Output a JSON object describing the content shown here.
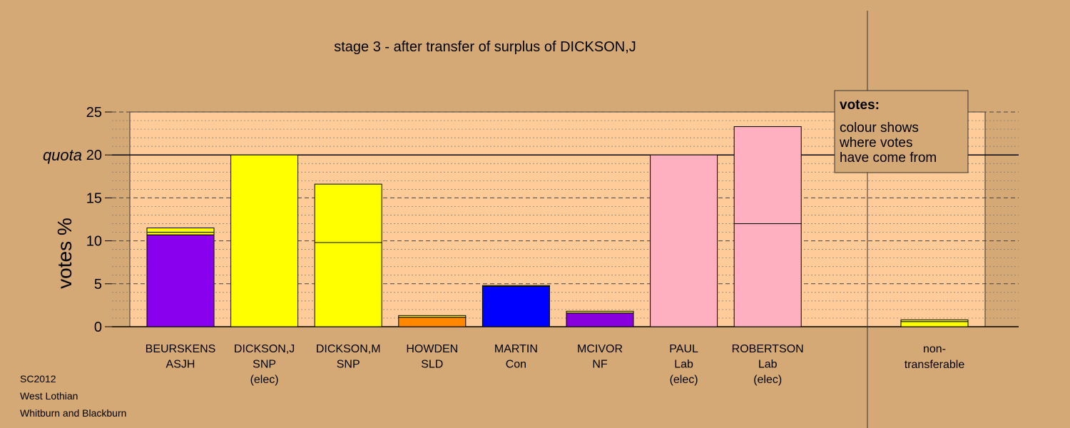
{
  "chart_data": {
    "type": "bar",
    "title": "stage 3 - after transfer of surplus of DICKSON,J",
    "ylabel": "votes %",
    "ylim": [
      0,
      25
    ],
    "yticks": [
      0,
      5,
      10,
      15,
      20,
      25
    ],
    "quota": {
      "value": 20,
      "label": "quota"
    },
    "grid": "dotted minor, dashed major",
    "colors": {
      "ASJH": "#8800ee",
      "SNP": "#ffff00",
      "SLD": "#ff8800",
      "Con": "#0000ff",
      "NF": "#8800dd",
      "Lab": "#ffb0c0",
      "plot_bg": "#ffcc99",
      "page_bg": "#d4a976"
    },
    "candidates": [
      {
        "name": "BEURSKENS",
        "party": "ASJH",
        "status": "",
        "segments": [
          {
            "from": "ASJH",
            "value": 10.7
          },
          {
            "from": "SNP",
            "value": 0.3
          },
          {
            "from": "SNP",
            "value": 0.5
          }
        ]
      },
      {
        "name": "DICKSON,J",
        "party": "SNP",
        "status": "(elec)",
        "segments": [
          {
            "from": "SNP",
            "value": 20.0
          }
        ]
      },
      {
        "name": "DICKSON,M",
        "party": "SNP",
        "status": "",
        "segments": [
          {
            "from": "SNP",
            "value": 9.8
          },
          {
            "from": "SNP",
            "value": 6.8
          }
        ]
      },
      {
        "name": "HOWDEN",
        "party": "SLD",
        "status": "",
        "segments": [
          {
            "from": "SLD",
            "value": 1.1
          },
          {
            "from": "SNP",
            "value": 0.2
          }
        ]
      },
      {
        "name": "MARTIN",
        "party": "Con",
        "status": "",
        "segments": [
          {
            "from": "Con",
            "value": 4.7
          },
          {
            "from": "SNP",
            "value": 0.1
          }
        ]
      },
      {
        "name": "MCIVOR",
        "party": "NF",
        "status": "",
        "segments": [
          {
            "from": "NF",
            "value": 1.6
          },
          {
            "from": "SNP",
            "value": 0.2
          }
        ]
      },
      {
        "name": "PAUL",
        "party": "Lab",
        "status": "(elec)",
        "segments": [
          {
            "from": "Lab",
            "value": 20.0
          }
        ]
      },
      {
        "name": "ROBERTSON",
        "party": "Lab",
        "status": "(elec)",
        "segments": [
          {
            "from": "Lab",
            "value": 12.0
          },
          {
            "from": "Lab",
            "value": 11.3
          }
        ]
      }
    ],
    "nontransferable": {
      "label_line1": "non-",
      "label_line2": "transferable",
      "segments": [
        {
          "from": "SNP",
          "value": 0.6
        },
        {
          "from": "SNP",
          "value": 0.2
        }
      ]
    },
    "legend": {
      "title": "votes:",
      "lines": [
        "colour shows",
        "where votes",
        "have come from"
      ],
      "placement": "top-right"
    }
  },
  "footer": {
    "lines": [
      "SC2012",
      "West Lothian",
      "Whitburn and Blackburn"
    ]
  }
}
